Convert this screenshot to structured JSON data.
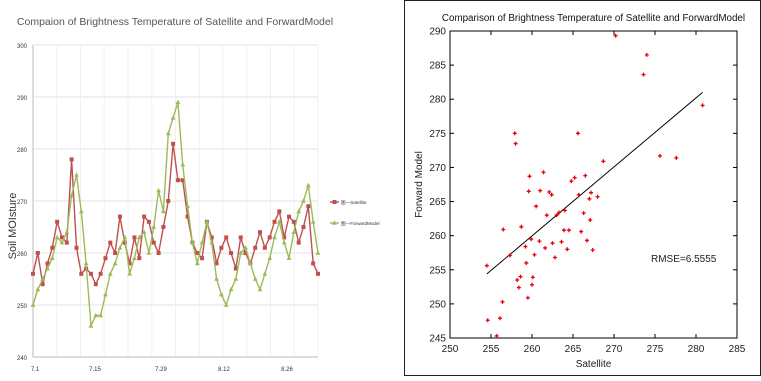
{
  "chart_data": [
    {
      "type": "line",
      "title": "Compaion of Brightness Temperature of Satellite and ForwardModel",
      "ylabel": "Soil MOIsture",
      "xlabel": "",
      "ylim": [
        240,
        300
      ],
      "yticks": [
        "300",
        "290",
        "280",
        "270",
        "260",
        "250",
        "240"
      ],
      "xtick_labels": [
        "7.1",
        "7.15",
        "7.29",
        "8.12",
        "8.26"
      ],
      "grid": true,
      "legend_position": "right",
      "n_points": 60,
      "colors": {
        "satellite": "#c0504d",
        "forward": "#9bbb59"
      },
      "series": [
        {
          "name": "Satellite",
          "legend_label": "图—Satellite",
          "marker": "square",
          "values": [
            256,
            260,
            254,
            258,
            261,
            266,
            263,
            262,
            278,
            261,
            256,
            257,
            256,
            254,
            256,
            259,
            262,
            260,
            267,
            262,
            258,
            263,
            259,
            267,
            266,
            262,
            260,
            265,
            270,
            281,
            274,
            274,
            267,
            262,
            260,
            259,
            266,
            263,
            258,
            261,
            263,
            260,
            257,
            263,
            260,
            258,
            261,
            264,
            261,
            263,
            266,
            268,
            263,
            267,
            266,
            262,
            265,
            269,
            258,
            256
          ]
        },
        {
          "name": "ForwardModel",
          "legend_label": "图—ForwardModel",
          "marker": "triangle",
          "values": [
            250,
            253,
            255,
            257,
            259,
            263,
            262,
            264,
            271,
            275,
            268,
            258,
            246,
            248,
            248,
            252,
            256,
            258,
            261,
            263,
            256,
            259,
            263,
            264,
            260,
            265,
            272,
            268,
            283,
            286,
            289,
            277,
            269,
            262,
            258,
            262,
            266,
            262,
            255,
            252,
            250,
            253,
            255,
            260,
            261,
            258,
            255,
            253,
            256,
            259,
            263,
            266,
            262,
            259,
            264,
            268,
            270,
            273,
            266,
            260
          ]
        }
      ]
    },
    {
      "type": "scatter",
      "title": "Comparison of Brightness Temperature of Satellite and ForwardModel",
      "xlabel": "Satellite",
      "ylabel": "Forward Model",
      "xlim": [
        250,
        285
      ],
      "ylim": [
        245,
        290
      ],
      "xticks": [
        250,
        255,
        260,
        265,
        270,
        275,
        280,
        285
      ],
      "yticks": [
        245,
        250,
        255,
        260,
        265,
        270,
        275,
        280,
        285,
        290
      ],
      "grid": false,
      "marker_color": "#e8000b",
      "annotation": "RMSE=6.5555",
      "fit_line": {
        "x": [
          254.5,
          280.8
        ],
        "y": [
          254.4,
          281
        ]
      },
      "points": [
        {
          "x": 254.5,
          "y": 255.6
        },
        {
          "x": 254.6,
          "y": 247.6
        },
        {
          "x": 255.7,
          "y": 245.3
        },
        {
          "x": 256.1,
          "y": 247.9
        },
        {
          "x": 256.4,
          "y": 250.3
        },
        {
          "x": 256.5,
          "y": 260.9
        },
        {
          "x": 257.3,
          "y": 257.1
        },
        {
          "x": 257.9,
          "y": 275.0
        },
        {
          "x": 258.0,
          "y": 273.5
        },
        {
          "x": 258.2,
          "y": 253.5
        },
        {
          "x": 258.4,
          "y": 252.4
        },
        {
          "x": 258.6,
          "y": 254.0
        },
        {
          "x": 258.7,
          "y": 261.3
        },
        {
          "x": 259.2,
          "y": 258.4
        },
        {
          "x": 259.3,
          "y": 256.0
        },
        {
          "x": 259.5,
          "y": 250.9
        },
        {
          "x": 259.6,
          "y": 266.5
        },
        {
          "x": 259.7,
          "y": 268.7
        },
        {
          "x": 259.9,
          "y": 259.5
        },
        {
          "x": 260.1,
          "y": 253.9
        },
        {
          "x": 260.0,
          "y": 252.8
        },
        {
          "x": 260.3,
          "y": 257.2
        },
        {
          "x": 260.5,
          "y": 264.3
        },
        {
          "x": 260.9,
          "y": 259.2
        },
        {
          "x": 261.0,
          "y": 266.6
        },
        {
          "x": 261.4,
          "y": 269.3
        },
        {
          "x": 261.6,
          "y": 258.2
        },
        {
          "x": 261.8,
          "y": 263.0
        },
        {
          "x": 262.1,
          "y": 266.4
        },
        {
          "x": 262.4,
          "y": 266.0
        },
        {
          "x": 262.5,
          "y": 258.9
        },
        {
          "x": 262.8,
          "y": 256.8
        },
        {
          "x": 263.0,
          "y": 263.0
        },
        {
          "x": 263.3,
          "y": 263.4
        },
        {
          "x": 263.6,
          "y": 259.1
        },
        {
          "x": 263.9,
          "y": 260.8
        },
        {
          "x": 264.0,
          "y": 263.7
        },
        {
          "x": 264.3,
          "y": 258.0
        },
        {
          "x": 264.5,
          "y": 260.8
        },
        {
          "x": 264.8,
          "y": 268.0
        },
        {
          "x": 265.2,
          "y": 268.5
        },
        {
          "x": 265.6,
          "y": 275.0
        },
        {
          "x": 265.7,
          "y": 266.0
        },
        {
          "x": 266.0,
          "y": 260.6
        },
        {
          "x": 266.3,
          "y": 263.3
        },
        {
          "x": 266.5,
          "y": 268.8
        },
        {
          "x": 266.7,
          "y": 259.3
        },
        {
          "x": 267.0,
          "y": 265.4
        },
        {
          "x": 267.1,
          "y": 262.3
        },
        {
          "x": 267.2,
          "y": 266.3
        },
        {
          "x": 267.4,
          "y": 257.9
        },
        {
          "x": 268.0,
          "y": 265.7
        },
        {
          "x": 268.7,
          "y": 270.9
        },
        {
          "x": 270.2,
          "y": 289.3
        },
        {
          "x": 273.6,
          "y": 283.6
        },
        {
          "x": 274.0,
          "y": 286.5
        },
        {
          "x": 275.6,
          "y": 271.7
        },
        {
          "x": 277.6,
          "y": 271.4
        },
        {
          "x": 280.8,
          "y": 279.1
        }
      ]
    }
  ]
}
